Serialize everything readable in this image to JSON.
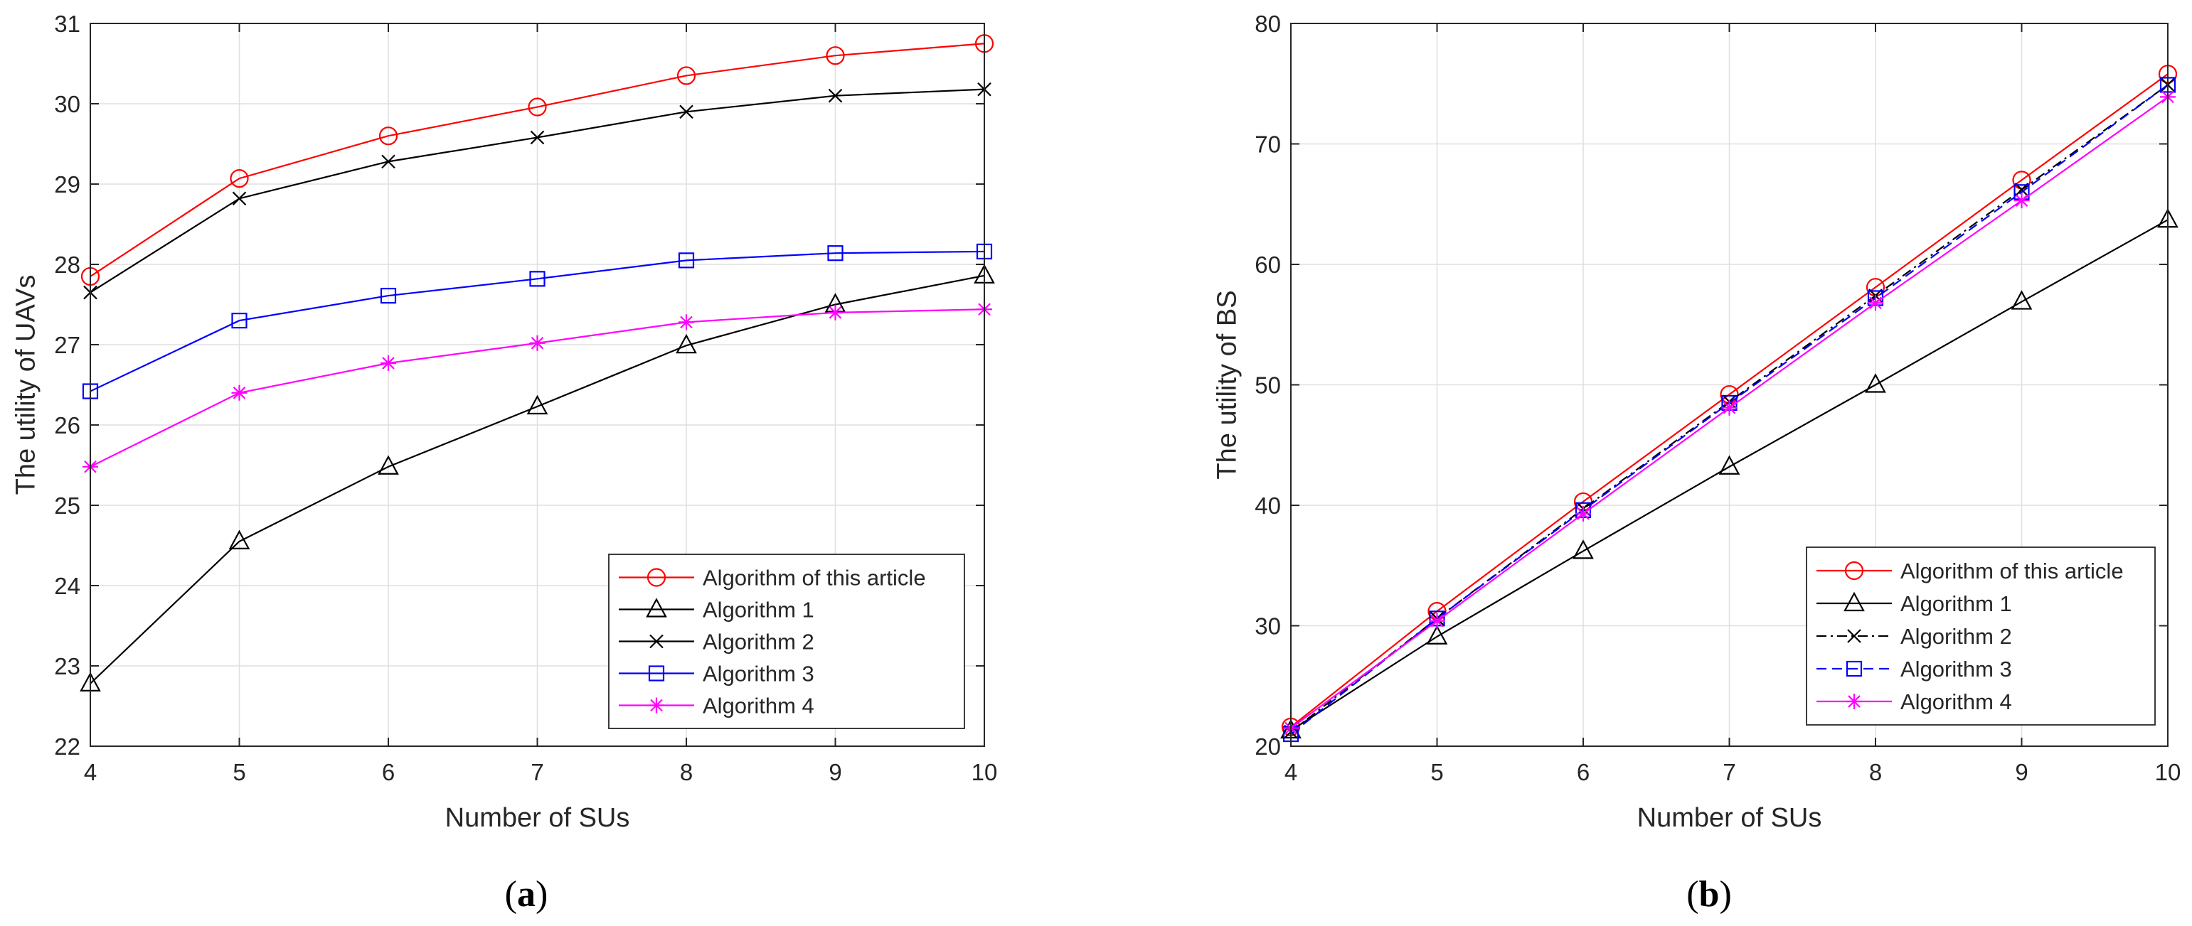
{
  "chart_data": [
    {
      "type": "line",
      "panel": "a",
      "title": "",
      "xlabel": "Number of SUs",
      "ylabel": "The utility of UAVs",
      "xlim": [
        4,
        10
      ],
      "ylim": [
        22,
        31
      ],
      "xticks": [
        4,
        5,
        6,
        7,
        8,
        9,
        10
      ],
      "yticks": [
        22,
        23,
        24,
        25,
        26,
        27,
        28,
        29,
        30,
        31
      ],
      "grid": true,
      "legend_position": "bottom-right",
      "x": [
        4,
        5,
        6,
        7,
        8,
        9,
        10
      ],
      "series": [
        {
          "name": "Algorithm of this article",
          "color": "#ff0000",
          "marker": "circle",
          "dash": "solid",
          "values": [
            27.85,
            29.07,
            29.6,
            29.96,
            30.35,
            30.6,
            30.75
          ]
        },
        {
          "name": "Algorithm 1",
          "color": "#000000",
          "marker": "triangle",
          "dash": "solid",
          "values": [
            22.78,
            24.55,
            25.48,
            26.23,
            26.99,
            27.5,
            27.86
          ]
        },
        {
          "name": "Algorithm 2",
          "color": "#000000",
          "marker": "x",
          "dash": "solid",
          "values": [
            27.65,
            28.82,
            29.28,
            29.58,
            29.9,
            30.1,
            30.18
          ]
        },
        {
          "name": "Algorithm 3",
          "color": "#0000ff",
          "marker": "square",
          "dash": "solid",
          "values": [
            26.42,
            27.3,
            27.61,
            27.82,
            28.05,
            28.14,
            28.16
          ]
        },
        {
          "name": "Algorithm 4",
          "color": "#ff00ff",
          "marker": "asterisk",
          "dash": "solid",
          "values": [
            25.48,
            26.4,
            26.77,
            27.02,
            27.28,
            27.4,
            27.44
          ]
        }
      ]
    },
    {
      "type": "line",
      "panel": "b",
      "title": "",
      "xlabel": "Number of SUs",
      "ylabel": "The utility of BS",
      "xlim": [
        4,
        10
      ],
      "ylim": [
        20,
        80
      ],
      "xticks": [
        4,
        5,
        6,
        7,
        8,
        9,
        10
      ],
      "yticks": [
        20,
        30,
        40,
        50,
        60,
        70,
        80
      ],
      "grid": true,
      "legend_position": "bottom-right",
      "x": [
        4,
        5,
        6,
        7,
        8,
        9,
        10
      ],
      "series": [
        {
          "name": "Algorithm of this article",
          "color": "#ff0000",
          "marker": "circle",
          "dash": "solid",
          "values": [
            21.6,
            31.2,
            40.3,
            49.2,
            58.1,
            67.0,
            75.8
          ]
        },
        {
          "name": "Algorithm 1",
          "color": "#000000",
          "marker": "triangle",
          "dash": "solid",
          "values": [
            21.3,
            29.1,
            36.2,
            43.2,
            50.0,
            56.9,
            63.7
          ]
        },
        {
          "name": "Algorithm 2",
          "color": "#000000",
          "marker": "x",
          "dash": "dashdot",
          "values": [
            21.2,
            30.6,
            39.7,
            48.6,
            57.4,
            66.2,
            74.9
          ]
        },
        {
          "name": "Algorithm 3",
          "color": "#0000ff",
          "marker": "square",
          "dash": "dashed",
          "values": [
            21.0,
            30.6,
            39.6,
            48.5,
            57.2,
            66.0,
            74.9
          ]
        },
        {
          "name": "Algorithm 4",
          "color": "#ff00ff",
          "marker": "asterisk",
          "dash": "solid",
          "values": [
            21.5,
            30.4,
            39.3,
            48.1,
            56.8,
            65.3,
            73.9
          ]
        }
      ]
    }
  ],
  "captions": [
    {
      "open": "(",
      "letter": "a",
      "close": ")"
    },
    {
      "open": "(",
      "letter": "b",
      "close": ")"
    }
  ]
}
